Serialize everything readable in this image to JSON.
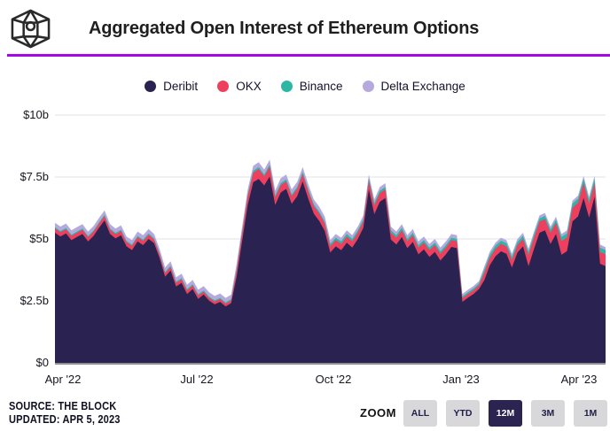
{
  "header": {
    "title": "Aggregated Open Interest of Ethereum Options"
  },
  "accent_color": "#a507e6",
  "chart_data": {
    "type": "area",
    "stacked": true,
    "title": "Aggregated Open Interest of Ethereum Options",
    "unit": "USD billions",
    "ylim": [
      0,
      10
    ],
    "grid": "horizontal",
    "legend_position": "top-center",
    "y_ticks": [
      "$10b",
      "$7.5b",
      "$5b",
      "$2.5b",
      "$0"
    ],
    "x_ticks": [
      "Apr '22",
      "Jul '22",
      "Oct '22",
      "Jan '23",
      "Apr '23"
    ],
    "x_range": [
      "Apr '22",
      "Apr '23"
    ],
    "series": [
      {
        "name": "Deribit",
        "color": "#2a2351",
        "values": [
          5.25,
          5.1,
          5.22,
          4.95,
          5.08,
          5.2,
          4.9,
          5.12,
          5.45,
          5.75,
          5.2,
          5.02,
          5.15,
          4.7,
          4.55,
          4.9,
          4.75,
          5.0,
          4.83,
          4.23,
          3.48,
          3.73,
          3.08,
          3.23,
          2.78,
          2.98,
          2.58,
          2.76,
          2.51,
          2.36,
          2.46,
          2.28,
          2.41,
          3.47,
          4.92,
          6.37,
          7.29,
          7.42,
          7.16,
          7.52,
          6.37,
          6.87,
          7.02,
          6.42,
          6.72,
          7.32,
          6.62,
          6.02,
          5.72,
          5.32,
          4.45,
          4.7,
          4.55,
          4.85,
          4.65,
          5.0,
          5.45,
          7.0,
          6.0,
          6.5,
          6.65,
          4.98,
          4.78,
          5.08,
          4.63,
          4.88,
          4.38,
          4.58,
          4.28,
          4.48,
          4.13,
          4.38,
          4.68,
          4.63,
          2.46,
          2.63,
          2.78,
          2.98,
          3.35,
          3.95,
          4.3,
          4.5,
          4.4,
          3.85,
          4.45,
          4.7,
          3.9,
          4.6,
          5.25,
          5.35,
          4.8,
          5.2,
          4.36,
          4.51,
          5.71,
          5.91,
          6.65,
          5.86,
          6.71,
          4.0,
          3.9
        ]
      },
      {
        "name": "OKX",
        "color": "#ee3f5e",
        "values": [
          0.17,
          0.17,
          0.17,
          0.17,
          0.17,
          0.17,
          0.17,
          0.17,
          0.17,
          0.17,
          0.17,
          0.17,
          0.17,
          0.17,
          0.17,
          0.17,
          0.17,
          0.17,
          0.14,
          0.14,
          0.14,
          0.14,
          0.14,
          0.14,
          0.14,
          0.14,
          0.14,
          0.11,
          0.11,
          0.11,
          0.11,
          0.11,
          0.11,
          0.25,
          0.3,
          0.35,
          0.38,
          0.4,
          0.36,
          0.4,
          0.3,
          0.3,
          0.3,
          0.3,
          0.3,
          0.3,
          0.3,
          0.3,
          0.3,
          0.3,
          0.25,
          0.25,
          0.25,
          0.25,
          0.25,
          0.25,
          0.25,
          0.35,
          0.35,
          0.35,
          0.35,
          0.27,
          0.27,
          0.27,
          0.27,
          0.27,
          0.27,
          0.27,
          0.27,
          0.27,
          0.27,
          0.27,
          0.27,
          0.27,
          0.15,
          0.15,
          0.15,
          0.15,
          0.3,
          0.3,
          0.3,
          0.3,
          0.3,
          0.3,
          0.3,
          0.3,
          0.45,
          0.45,
          0.45,
          0.45,
          0.45,
          0.45,
          0.55,
          0.55,
          0.55,
          0.55,
          0.6,
          0.55,
          0.55,
          0.48,
          0.48
        ]
      },
      {
        "name": "Binance",
        "color": "#2cb7a5",
        "values": [
          0.05,
          0.05,
          0.05,
          0.05,
          0.05,
          0.05,
          0.05,
          0.05,
          0.05,
          0.05,
          0.05,
          0.05,
          0.05,
          0.05,
          0.05,
          0.05,
          0.05,
          0.05,
          0.05,
          0.05,
          0.05,
          0.05,
          0.05,
          0.05,
          0.05,
          0.05,
          0.05,
          0.05,
          0.05,
          0.05,
          0.05,
          0.05,
          0.05,
          0.08,
          0.08,
          0.08,
          0.08,
          0.08,
          0.08,
          0.08,
          0.08,
          0.08,
          0.08,
          0.08,
          0.08,
          0.08,
          0.08,
          0.08,
          0.08,
          0.08,
          0.1,
          0.1,
          0.1,
          0.1,
          0.1,
          0.1,
          0.1,
          0.1,
          0.1,
          0.1,
          0.1,
          0.1,
          0.1,
          0.1,
          0.1,
          0.1,
          0.1,
          0.1,
          0.1,
          0.1,
          0.1,
          0.1,
          0.1,
          0.1,
          0.07,
          0.07,
          0.07,
          0.07,
          0.13,
          0.13,
          0.13,
          0.13,
          0.13,
          0.13,
          0.13,
          0.13,
          0.13,
          0.13,
          0.13,
          0.13,
          0.13,
          0.13,
          0.17,
          0.17,
          0.17,
          0.17,
          0.17,
          0.17,
          0.17,
          0.17,
          0.17
        ]
      },
      {
        "name": "Delta Exchange",
        "color": "#b6a9dd",
        "values": [
          0.18,
          0.18,
          0.18,
          0.18,
          0.18,
          0.18,
          0.18,
          0.18,
          0.18,
          0.18,
          0.18,
          0.18,
          0.18,
          0.18,
          0.18,
          0.18,
          0.18,
          0.18,
          0.18,
          0.18,
          0.18,
          0.18,
          0.18,
          0.18,
          0.18,
          0.18,
          0.18,
          0.18,
          0.18,
          0.18,
          0.18,
          0.18,
          0.18,
          0.2,
          0.2,
          0.2,
          0.2,
          0.2,
          0.2,
          0.2,
          0.2,
          0.2,
          0.2,
          0.2,
          0.2,
          0.2,
          0.2,
          0.2,
          0.2,
          0.2,
          0.15,
          0.15,
          0.15,
          0.15,
          0.15,
          0.15,
          0.15,
          0.15,
          0.15,
          0.15,
          0.15,
          0.15,
          0.15,
          0.15,
          0.15,
          0.15,
          0.15,
          0.15,
          0.15,
          0.15,
          0.15,
          0.15,
          0.15,
          0.15,
          0.1,
          0.1,
          0.1,
          0.1,
          0.12,
          0.12,
          0.12,
          0.12,
          0.12,
          0.12,
          0.12,
          0.12,
          0.12,
          0.12,
          0.12,
          0.12,
          0.12,
          0.12,
          0.12,
          0.12,
          0.12,
          0.12,
          0.12,
          0.12,
          0.12,
          0.12,
          0.12
        ]
      }
    ]
  },
  "footer": {
    "source": "SOURCE: THE BLOCK",
    "updated": "UPDATED: APR 5, 2023"
  },
  "zoom": {
    "label": "ZOOM",
    "buttons": [
      {
        "label": "ALL",
        "active": false
      },
      {
        "label": "YTD",
        "active": false
      },
      {
        "label": "12M",
        "active": true
      },
      {
        "label": "3M",
        "active": false
      },
      {
        "label": "1M",
        "active": false
      }
    ]
  }
}
